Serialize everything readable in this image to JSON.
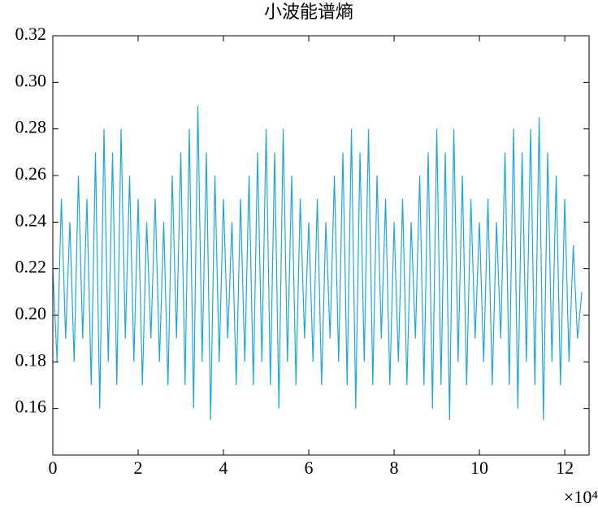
{
  "chart_data": {
    "type": "line",
    "title": "小波能谱熵",
    "x": [
      0,
      0.1,
      0.2,
      0.3,
      0.4,
      0.5,
      0.6,
      0.7,
      0.8,
      0.9,
      1,
      1.1,
      1.2,
      1.3,
      1.4,
      1.5,
      1.6,
      1.7,
      1.8,
      1.9,
      2,
      2.1,
      2.2,
      2.3,
      2.4,
      2.5,
      2.6,
      2.7,
      2.8,
      2.9,
      3,
      3.1,
      3.2,
      3.3,
      3.4,
      3.5,
      3.6,
      3.7,
      3.8,
      3.9,
      4,
      4.1,
      4.2,
      4.3,
      4.4,
      4.5,
      4.6,
      4.7,
      4.8,
      4.9,
      5,
      5.1,
      5.2,
      5.3,
      5.4,
      5.5,
      5.6,
      5.7,
      5.8,
      5.9,
      6,
      6.1,
      6.2,
      6.3,
      6.4,
      6.5,
      6.6,
      6.7,
      6.8,
      6.9,
      7,
      7.1,
      7.2,
      7.3,
      7.4,
      7.5,
      7.6,
      7.7,
      7.8,
      7.9,
      8,
      8.1,
      8.2,
      8.3,
      8.4,
      8.5,
      8.6,
      8.7,
      8.8,
      8.9,
      9,
      9.1,
      9.2,
      9.3,
      9.4,
      9.5,
      9.6,
      9.7,
      9.8,
      9.9,
      10,
      10.1,
      10.2,
      10.3,
      10.4,
      10.5,
      10.6,
      10.7,
      10.8,
      10.9,
      11,
      11.1,
      11.2,
      11.3,
      11.4,
      11.5,
      11.6,
      11.7,
      11.8,
      11.9,
      12,
      12.1,
      12.2,
      12.3,
      12.4
    ],
    "series": [
      {
        "color": "#1ea5de",
        "values": [
          0.22,
          0.18,
          0.25,
          0.19,
          0.24,
          0.18,
          0.26,
          0.19,
          0.25,
          0.17,
          0.27,
          0.16,
          0.28,
          0.18,
          0.27,
          0.17,
          0.28,
          0.19,
          0.26,
          0.18,
          0.25,
          0.17,
          0.24,
          0.19,
          0.25,
          0.18,
          0.24,
          0.17,
          0.26,
          0.19,
          0.27,
          0.17,
          0.28,
          0.16,
          0.29,
          0.18,
          0.27,
          0.155,
          0.26,
          0.18,
          0.25,
          0.19,
          0.24,
          0.17,
          0.25,
          0.18,
          0.26,
          0.17,
          0.27,
          0.18,
          0.28,
          0.17,
          0.27,
          0.16,
          0.28,
          0.18,
          0.26,
          0.17,
          0.25,
          0.19,
          0.24,
          0.18,
          0.25,
          0.17,
          0.24,
          0.19,
          0.26,
          0.18,
          0.27,
          0.17,
          0.28,
          0.16,
          0.27,
          0.18,
          0.28,
          0.17,
          0.26,
          0.19,
          0.25,
          0.17,
          0.24,
          0.18,
          0.25,
          0.17,
          0.24,
          0.19,
          0.26,
          0.17,
          0.27,
          0.16,
          0.28,
          0.17,
          0.27,
          0.155,
          0.28,
          0.18,
          0.26,
          0.17,
          0.25,
          0.19,
          0.24,
          0.18,
          0.25,
          0.17,
          0.24,
          0.19,
          0.27,
          0.17,
          0.28,
          0.16,
          0.27,
          0.18,
          0.28,
          0.17,
          0.285,
          0.155,
          0.27,
          0.18,
          0.26,
          0.17,
          0.25,
          0.18,
          0.23,
          0.19,
          0.21
        ]
      }
    ],
    "xlim": [
      0,
      12.57
    ],
    "xticks": [
      0,
      2,
      4,
      6,
      8,
      10,
      12
    ],
    "ylim": [
      0.14,
      0.32
    ],
    "yticks": [
      0.16,
      0.18,
      {
        "value": 0.2,
        "label": "0.20"
      },
      0.22,
      0.24,
      0.26,
      0.28,
      {
        "value": 0.3,
        "label": "0.30"
      },
      0.32
    ],
    "x_scale_label": "×10⁴"
  }
}
